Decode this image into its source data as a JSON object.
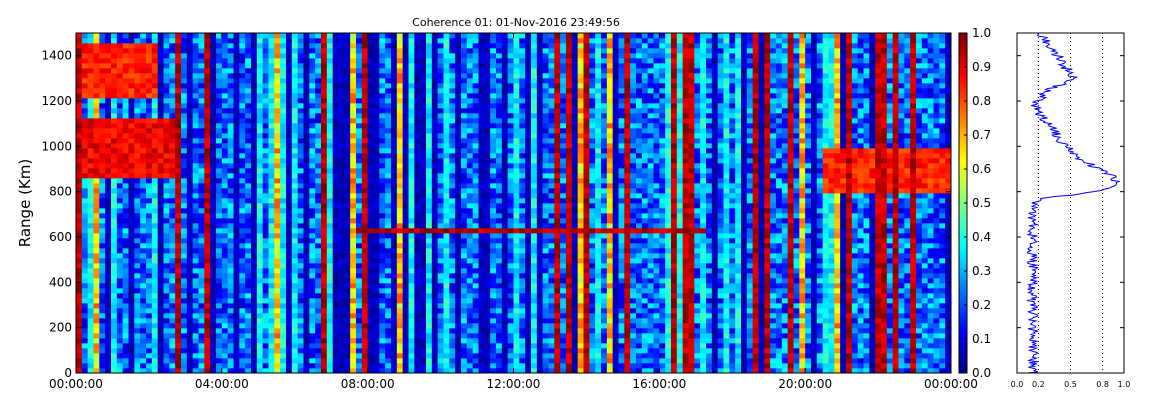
{
  "chart_data": [
    {
      "type": "heatmap",
      "title": "Coherence 01: 01-Nov-2016 23:49:56",
      "xlabel": "",
      "ylabel": "Range (Km)",
      "xlim": [
        "00:00:00",
        "24:00:00"
      ],
      "ylim": [
        0,
        1500
      ],
      "x_ticks": [
        "00:00:00",
        "04:00:00",
        "08:00:00",
        "12:00:00",
        "16:00:00",
        "20:00:00",
        "00:00:00"
      ],
      "y_ticks": [
        0,
        200,
        400,
        600,
        800,
        1000,
        1200,
        1400
      ],
      "colormap": "jet",
      "value_range": [
        0,
        1
      ],
      "colorbar_ticks": [
        "0.0",
        "0.1",
        "0.2",
        "0.3",
        "0.4",
        "0.5",
        "0.6",
        "0.7",
        "0.8",
        "0.9",
        "1.0"
      ],
      "features": [
        {
          "x_start": "00:00:00",
          "x_end": "02:50:00",
          "y_range": [
            850,
            1120
          ],
          "coherence": 0.95
        },
        {
          "x_start": "00:00:00",
          "x_end": "02:10:00",
          "y_range": [
            1220,
            1450
          ],
          "coherence": 0.9
        },
        {
          "x_start": "07:40:00",
          "x_end": "17:20:00",
          "y_range": [
            615,
            640
          ],
          "coherence": 1.0
        },
        {
          "x_start": "20:30:00",
          "x_end": "24:00:00",
          "y_range": [
            800,
            1000
          ],
          "coherence": 0.9
        }
      ]
    },
    {
      "type": "line",
      "title": "",
      "xlabel": "",
      "ylabel": "",
      "xlim": [
        0,
        1
      ],
      "ylim": [
        0,
        1500
      ],
      "x_ticks": [
        "0.0",
        "0.2",
        "0.5",
        "0.8",
        "1.0"
      ],
      "grid": "vertical dotted",
      "color": "#0000ff",
      "profile": [
        {
          "y": 0,
          "x": 0.15
        },
        {
          "y": 100,
          "x": 0.14
        },
        {
          "y": 200,
          "x": 0.15
        },
        {
          "y": 300,
          "x": 0.14
        },
        {
          "y": 400,
          "x": 0.15
        },
        {
          "y": 500,
          "x": 0.14
        },
        {
          "y": 600,
          "x": 0.15
        },
        {
          "y": 700,
          "x": 0.15
        },
        {
          "y": 770,
          "x": 0.2
        },
        {
          "y": 800,
          "x": 0.75
        },
        {
          "y": 840,
          "x": 0.95
        },
        {
          "y": 880,
          "x": 0.85
        },
        {
          "y": 950,
          "x": 0.55
        },
        {
          "y": 1030,
          "x": 0.4
        },
        {
          "y": 1100,
          "x": 0.3
        },
        {
          "y": 1180,
          "x": 0.15
        },
        {
          "y": 1250,
          "x": 0.3
        },
        {
          "y": 1300,
          "x": 0.55
        },
        {
          "y": 1350,
          "x": 0.45
        },
        {
          "y": 1420,
          "x": 0.35
        },
        {
          "y": 1500,
          "x": 0.2
        }
      ]
    }
  ]
}
